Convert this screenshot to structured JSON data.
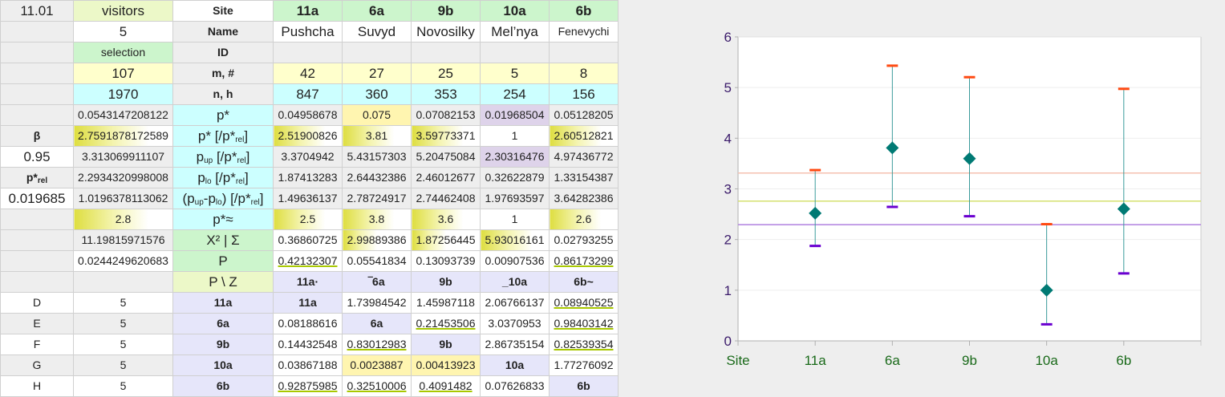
{
  "table": {
    "rows": [
      [
        "11.01",
        "visitors",
        "Site",
        "11a",
        "6a",
        "9b",
        "10a",
        "6b"
      ],
      [
        "",
        "5",
        "Name",
        "Pushcha",
        "Suvyd",
        "Novosilky",
        "Mel’nya",
        "Fenevychi"
      ],
      [
        "",
        "selection",
        "ID",
        "",
        "",
        "",
        "",
        ""
      ],
      [
        "",
        "107",
        "m, #",
        "42",
        "27",
        "25",
        "5",
        "8"
      ],
      [
        "",
        "1970",
        "n, h",
        "847",
        "360",
        "353",
        "254",
        "156"
      ],
      [
        "",
        "0.0543147208122",
        "p*",
        "0.04958678",
        "0.075",
        "0.07082153",
        "0.01968504",
        "0.05128205"
      ],
      [
        "β",
        "2.7591878172589",
        [
          [
            "",
            "p* [/p*"
          ],
          [
            "sub",
            "rel"
          ],
          [
            "",
            "]"
          ]
        ],
        "2.51900826",
        "3.81",
        "3.59773371",
        "1",
        "2.60512821"
      ],
      [
        "0.95",
        "3.313069911107",
        [
          [
            "",
            "p"
          ],
          [
            "sub",
            "up"
          ],
          [
            "",
            " [/p*"
          ],
          [
            "sub",
            "rel"
          ],
          [
            "",
            "]"
          ]
        ],
        "3.3704942",
        "5.43157303",
        "5.20475084",
        "2.30316476",
        "4.97436772"
      ],
      [
        [
          [
            "",
            "p*"
          ],
          [
            "sub",
            "rel"
          ]
        ],
        "2.2934320998008",
        [
          [
            "",
            "p"
          ],
          [
            "sub",
            "lo"
          ],
          [
            "",
            " [/p*"
          ],
          [
            "sub",
            "rel"
          ],
          [
            "",
            "]"
          ]
        ],
        "1.87413283",
        "2.64432386",
        "2.46012677",
        "0.32622879",
        "1.33154387"
      ],
      [
        "0.019685",
        "1.0196378113062",
        [
          [
            "",
            "(p"
          ],
          [
            "sub",
            "up"
          ],
          [
            "",
            "-p"
          ],
          [
            "sub",
            "lo"
          ],
          [
            "",
            ") [/p*"
          ],
          [
            "sub",
            "rel"
          ],
          [
            "",
            "]"
          ]
        ],
        "1.49636137",
        "2.78724917",
        "2.74462408",
        "1.97693597",
        "3.64282386"
      ],
      [
        "",
        "2.8",
        "p*≈",
        "2.5",
        "3.8",
        "3.6",
        "1",
        "2.6"
      ],
      [
        "",
        "11.19815971576",
        "X² | Σ",
        "0.36860725",
        "2.99889386",
        "1.87256445",
        "5.93016161",
        "0.02793255"
      ],
      [
        "",
        "0.0244249620683",
        "P",
        "0.42132307",
        "0.05541834",
        "0.13093739",
        "0.00907536",
        "0.86173299"
      ],
      [
        "",
        "",
        "P \\ Z",
        "11a·",
        "‾6a",
        "9b",
        "_10a",
        "6b~"
      ],
      [
        "D",
        "5",
        "11a",
        "11a",
        "1.73984542",
        "1.45987118",
        "2.06766137",
        "0.08940525"
      ],
      [
        "E",
        "5",
        "6a",
        "0.08188616",
        "6a",
        "0.21453506",
        "3.0370953",
        "0.98403142"
      ],
      [
        "F",
        "5",
        "9b",
        "0.14432548",
        "0.83012983",
        "9b",
        "2.86735154",
        "0.82539354"
      ],
      [
        "G",
        "5",
        "10a",
        "0.03867188",
        "0.0023887",
        "0.00413923",
        "10a",
        "1.77276092"
      ],
      [
        "H",
        "5",
        "6b",
        "0.92875985",
        "0.32510006",
        "0.4091482",
        "0.07626833",
        "6b"
      ]
    ]
  },
  "chart_data": {
    "type": "scatter",
    "xlabel": "",
    "ylabel": "",
    "categories": [
      "Site",
      "11a",
      "6a",
      "9b",
      "10a",
      "6b"
    ],
    "ylim": [
      0,
      6
    ],
    "yticks": [
      "0",
      "1",
      "2",
      "3",
      "4",
      "5",
      "6"
    ],
    "grid": true,
    "points": [
      {
        "category": "11a",
        "value": 2.51900826,
        "upper": 3.3704942,
        "lower": 1.87413283
      },
      {
        "category": "6a",
        "value": 3.81,
        "upper": 5.43157303,
        "lower": 2.64432386
      },
      {
        "category": "9b",
        "value": 3.59773371,
        "upper": 5.20475084,
        "lower": 2.46012677
      },
      {
        "category": "10a",
        "value": 1,
        "upper": 2.30316476,
        "lower": 0.32622879
      },
      {
        "category": "6b",
        "value": 2.60512821,
        "upper": 4.97436772,
        "lower": 1.33154387
      }
    ],
    "reference_lines": [
      {
        "value": 3.313069911107,
        "color": "#f4c0b0"
      },
      {
        "value": 2.7591878172589,
        "color": "#d4e070"
      },
      {
        "value": 2.2934320998008,
        "color": "#b080e0"
      }
    ],
    "colors": {
      "marker": "#007a74",
      "upper_cap": "#ff4a12",
      "lower_cap": "#6a00d0",
      "axis_text": "#3a1a6a",
      "category_text": "#1a6a1a"
    }
  }
}
